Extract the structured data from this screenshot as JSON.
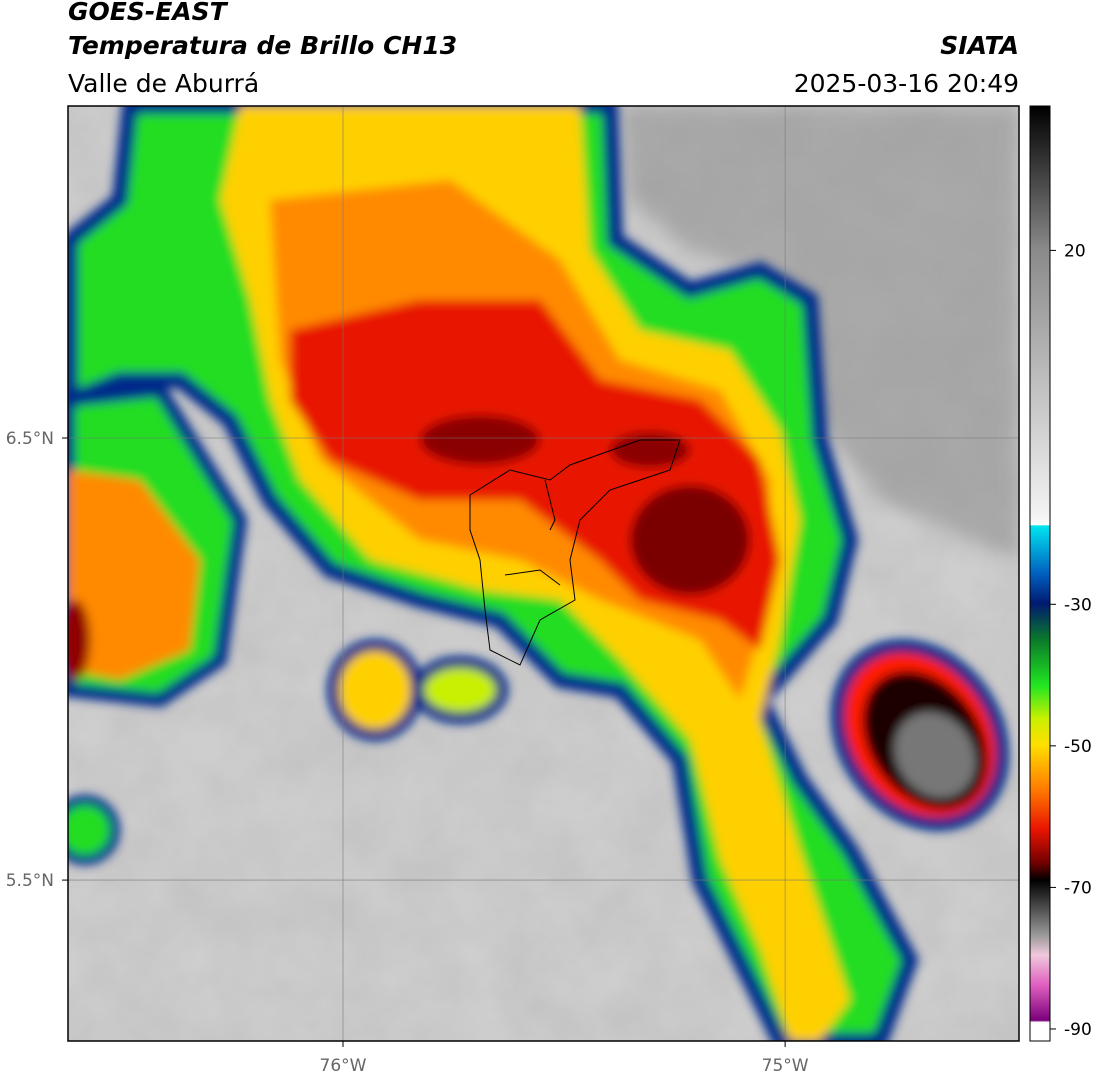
{
  "header": {
    "title": "GOES-EAST",
    "subtitle": "Temperatura de Brillo CH13",
    "region": "Valle de Aburrá",
    "source": "SIATA",
    "datetime": "2025-03-16 20:49"
  },
  "map": {
    "lon_range": [
      -76.622,
      -74.471
    ],
    "lat_range": [
      5.136,
      7.251
    ],
    "lat_ticks": [
      {
        "value": 6.5,
        "label": "6.5°N"
      },
      {
        "value": 5.5,
        "label": "5.5°N"
      }
    ],
    "lon_ticks": [
      {
        "value": -76,
        "label": "76°W"
      },
      {
        "value": -75,
        "label": "75°W"
      }
    ]
  },
  "colorbar": {
    "range": [
      -91.7,
      40.4
    ],
    "ticks": [
      20,
      -30,
      -50,
      -70,
      -90
    ]
  }
}
